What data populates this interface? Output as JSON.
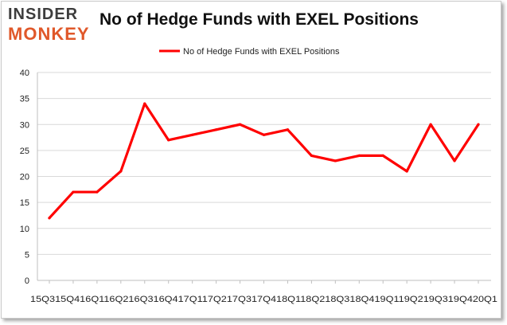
{
  "header": {
    "logo_top": "INSIDER",
    "logo_bottom": "MONKEY",
    "title": "No of Hedge Funds with EXEL Positions"
  },
  "colors": {
    "series": "#ff0000",
    "grid": "#d9d9d9",
    "logo_top": "#3d3d3d",
    "logo_bottom": "#e0582a"
  },
  "chart_data": {
    "type": "line",
    "title": "No of Hedge Funds with EXEL Positions",
    "xlabel": "",
    "ylabel": "",
    "ylim": [
      0,
      40
    ],
    "yticks": [
      0,
      5,
      10,
      15,
      20,
      25,
      30,
      35,
      40
    ],
    "grid": "horizontal",
    "legend_position": "top-center",
    "x_tick_text": "15Q315Q416Q116Q216Q316Q417Q117Q217Q317Q418Q118Q218Q318Q419Q119Q219Q319Q420Q1",
    "categories": [
      "15Q3",
      "15Q4",
      "16Q1",
      "16Q2",
      "16Q3",
      "16Q4",
      "17Q1",
      "17Q2",
      "17Q3",
      "17Q4",
      "18Q1",
      "18Q2",
      "18Q3",
      "18Q4",
      "19Q1",
      "19Q2",
      "19Q3",
      "19Q4",
      "20Q1"
    ],
    "series": [
      {
        "name": "No of Hedge Funds with EXEL Positions",
        "values": [
          12,
          17,
          17,
          21,
          34,
          27,
          28,
          29,
          30,
          28,
          29,
          24,
          23,
          24,
          24,
          21,
          30,
          23,
          30
        ]
      }
    ]
  }
}
